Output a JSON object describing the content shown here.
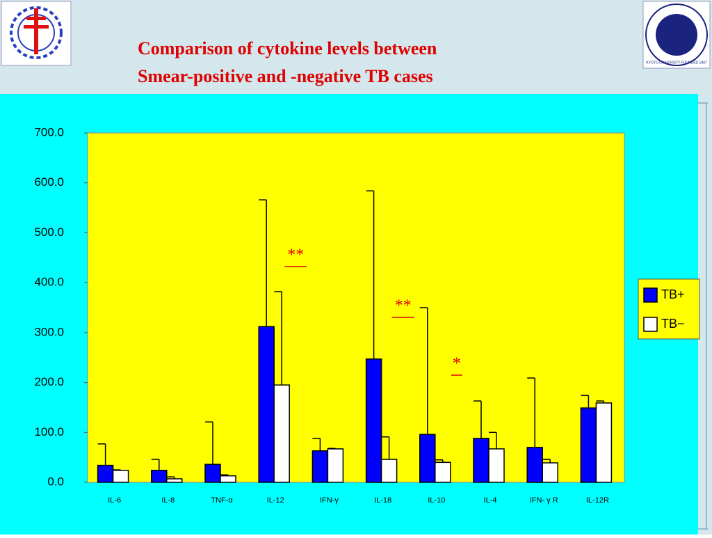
{
  "header": {
    "title_lines": [
      "Comparison of cytokine levels between",
      "Smear-positive and -negative TB cases"
    ],
    "logo_text": "KYOTO UNIVERSITY FOUNDED 1897"
  },
  "chart_data": {
    "type": "bar",
    "categories": [
      "IL-6",
      "IL-8",
      "TNF-α",
      "IL-12",
      "IFN-γ",
      "IL-18",
      "IL-10",
      "IL-4",
      "IFN- γ R",
      "IL-12R"
    ],
    "series": [
      {
        "name": "TB+",
        "color": "#0000ff",
        "values": [
          34,
          24,
          36,
          312,
          63,
          247,
          96,
          88,
          70,
          149
        ],
        "errors": [
          43,
          22,
          85,
          254,
          25,
          337,
          254,
          75,
          139,
          25
        ]
      },
      {
        "name": "TB−",
        "color": "#ffffff",
        "values": [
          24,
          7,
          13,
          195,
          67,
          46,
          40,
          67,
          39,
          159
        ],
        "errors": [
          1,
          4,
          2,
          187,
          1,
          45,
          5,
          33,
          7,
          4
        ]
      }
    ],
    "ylim": [
      0,
      700
    ],
    "yticks": [
      {
        "value": 0,
        "label": "0.0"
      },
      {
        "value": 100,
        "label": "100.0"
      },
      {
        "value": 200,
        "label": "200.0"
      },
      {
        "value": 300,
        "label": "300.0"
      },
      {
        "value": 400,
        "label": "400.0"
      },
      {
        "value": 500,
        "label": "500.0"
      },
      {
        "value": 600,
        "label": "600.0"
      },
      {
        "value": 700,
        "label": "700.0"
      }
    ],
    "annotations": [
      {
        "text": "**",
        "category": "IL-12"
      },
      {
        "text": "**",
        "category": "IL-18"
      },
      {
        "text": "*",
        "category": "IL-10"
      }
    ],
    "legend": "right"
  }
}
